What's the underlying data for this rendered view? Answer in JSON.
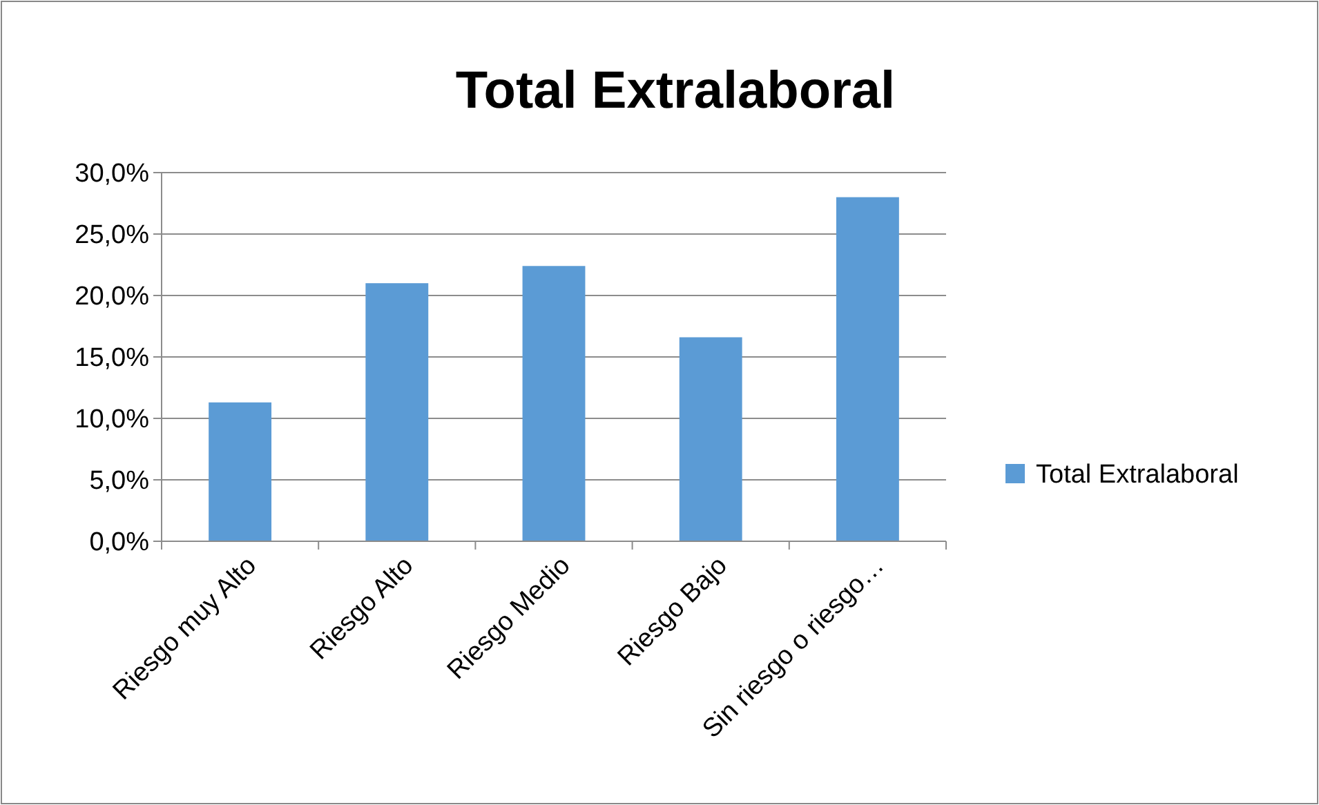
{
  "chart_data": {
    "type": "bar",
    "title": "Total Extralaboral",
    "categories": [
      "Riesgo muy Alto",
      "Riesgo Alto",
      "Riesgo Medio",
      "Riesgo Bajo",
      "Sin riesgo o riesgo…"
    ],
    "series": [
      {
        "name": "Total Extralaboral",
        "color": "#5b9bd5",
        "values": [
          11.3,
          21.0,
          22.4,
          16.6,
          28.0
        ]
      }
    ],
    "ylim": [
      0,
      30
    ],
    "yticks": [
      {
        "value": 0,
        "label": "0,0%"
      },
      {
        "value": 5,
        "label": "5,0%"
      },
      {
        "value": 10,
        "label": "10,0%"
      },
      {
        "value": 15,
        "label": "15,0%"
      },
      {
        "value": 20,
        "label": "20,0%"
      },
      {
        "value": 25,
        "label": "25,0%"
      },
      {
        "value": 30,
        "label": "30,0%"
      }
    ],
    "grid": "y",
    "legend": "right"
  }
}
